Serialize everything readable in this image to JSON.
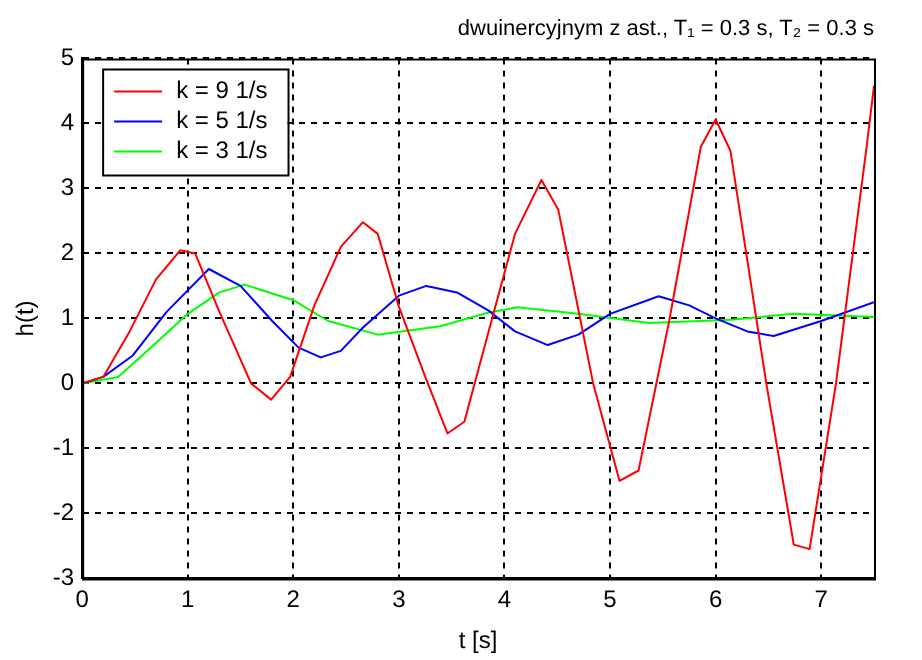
{
  "chart_data": {
    "type": "line",
    "title": "dwuinercyjnym z ast., T₁ = 0.3 s, T₂ = 0.3 s",
    "xlabel": "t [s]",
    "ylabel": "h(t)",
    "xlim": [
      0,
      7.5
    ],
    "xticks": [
      0,
      1,
      2,
      3,
      4,
      5,
      6,
      7
    ],
    "ylim": [
      -3,
      5
    ],
    "yticks": [
      -3,
      -2,
      -1,
      0,
      1,
      2,
      3,
      4,
      5
    ],
    "grid": true,
    "legend": "top left",
    "marker": "none",
    "line_style": "solid",
    "series": [
      {
        "name": "k = 9 1/s",
        "color": "#ff0000",
        "x": [
          0,
          0.2,
          0.45,
          0.7,
          0.93,
          1.07,
          1.3,
          1.6,
          1.79,
          1.97,
          2.2,
          2.45,
          2.66,
          2.8,
          3.0,
          3.25,
          3.46,
          3.62,
          3.85,
          4.1,
          4.35,
          4.51,
          4.84,
          5.09,
          5.27,
          5.56,
          5.86,
          6.0,
          6.14,
          6.48,
          6.74,
          6.89,
          7.14,
          7.43,
          7.5
        ],
        "values": [
          0,
          0.1,
          0.8,
          1.6,
          2.05,
          2.0,
          1.1,
          0,
          -0.25,
          0.1,
          1.2,
          2.1,
          2.48,
          2.3,
          1.18,
          0.1,
          -0.77,
          -0.59,
          0.8,
          2.3,
          3.13,
          2.67,
          0,
          -1.5,
          -1.34,
          0.96,
          3.64,
          4.06,
          3.58,
          0,
          -2.48,
          -2.55,
          0,
          3.64,
          4.58
        ]
      },
      {
        "name": "k = 5 1/s",
        "color": "#0000ff",
        "x": [
          0,
          0.2,
          0.48,
          0.8,
          1.2,
          1.5,
          1.8,
          2.05,
          2.26,
          2.45,
          2.66,
          3.0,
          3.26,
          3.55,
          3.85,
          4.1,
          4.41,
          4.7,
          5.0,
          5.46,
          5.75,
          6.0,
          6.3,
          6.55,
          7.0,
          7.5
        ],
        "values": [
          0,
          0.1,
          0.43,
          1.1,
          1.76,
          1.5,
          0.96,
          0.55,
          0.4,
          0.5,
          0.86,
          1.35,
          1.5,
          1.4,
          1.12,
          0.8,
          0.59,
          0.75,
          1.07,
          1.34,
          1.2,
          1.0,
          0.8,
          0.73,
          0.96,
          1.25
        ]
      },
      {
        "name": "k = 3 1/s",
        "color": "#00ff00",
        "x": [
          0,
          0.34,
          0.65,
          1.0,
          1.3,
          1.54,
          2.0,
          2.33,
          2.8,
          3.39,
          3.85,
          4.12,
          4.7,
          5.37,
          6.15,
          6.74,
          7.5
        ],
        "values": [
          0,
          0.1,
          0.55,
          1.07,
          1.4,
          1.52,
          1.28,
          0.96,
          0.75,
          0.88,
          1.09,
          1.17,
          1.07,
          0.93,
          0.98,
          1.07,
          1.02
        ]
      }
    ]
  }
}
